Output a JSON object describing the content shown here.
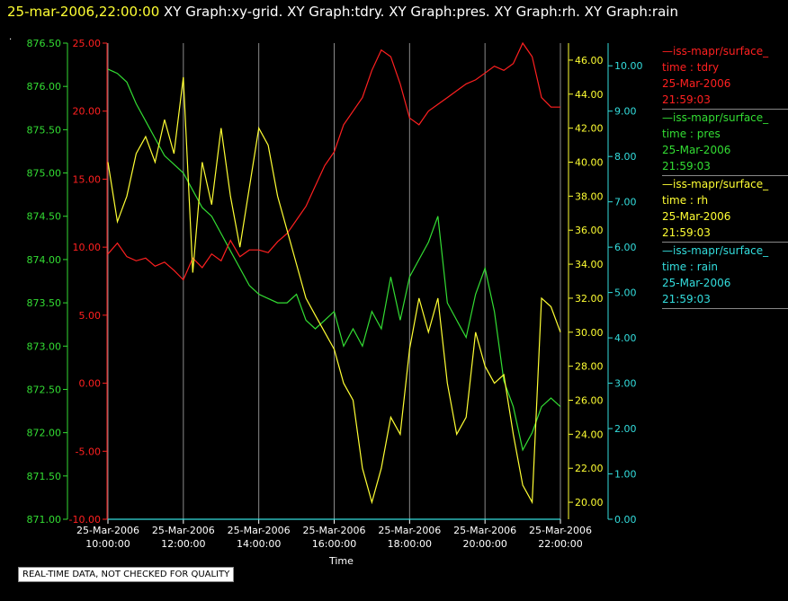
{
  "title": {
    "timestamp": "25-mar-2006,22:00:00",
    "graphs": "XY Graph:xy-grid.  XY Graph:tdry.  XY Graph:pres.  XY Graph:rh.  XY Graph:rain"
  },
  "dot": ".",
  "notice": "REAL-TIME DATA, NOT CHECKED FOR QUALITY",
  "legend": [
    {
      "name": "—iss-mapr/surface_",
      "field": "time : tdry",
      "date": "25-Mar-2006",
      "time": "21:59:03",
      "color": "#ff2020"
    },
    {
      "name": "—iss-mapr/surface_",
      "field": "time : pres",
      "date": "25-Mar-2006",
      "time": "21:59:03",
      "color": "#33dd33"
    },
    {
      "name": "—iss-mapr/surface_",
      "field": "time : rh",
      "date": "25-Mar-2006",
      "time": "21:59:03",
      "color": "#ffff33"
    },
    {
      "name": "—iss-mapr/surface_",
      "field": "time : rain",
      "date": "25-Mar-2006",
      "time": "21:59:03",
      "color": "#33dddd"
    }
  ],
  "chart_data": {
    "type": "line",
    "title": "",
    "xlabel": "Time",
    "grid": "vertical",
    "x_range": [
      "25-Mar-2006 10:00:00",
      "25-Mar-2006 22:00:00"
    ],
    "x_ticks": [
      {
        "date": "25-Mar-2006",
        "time": "10:00:00",
        "hour": 10
      },
      {
        "date": "25-Mar-2006",
        "time": "12:00:00",
        "hour": 12
      },
      {
        "date": "25-Mar-2006",
        "time": "14:00:00",
        "hour": 14
      },
      {
        "date": "25-Mar-2006",
        "time": "16:00:00",
        "hour": 16
      },
      {
        "date": "25-Mar-2006",
        "time": "18:00:00",
        "hour": 18
      },
      {
        "date": "25-Mar-2006",
        "time": "20:00:00",
        "hour": 20
      },
      {
        "date": "25-Mar-2006",
        "time": "22:00:00",
        "hour": 22
      }
    ],
    "axes": {
      "pres": {
        "color": "#33dd33",
        "range": [
          871.0,
          876.5
        ],
        "ticks": [
          "871.00",
          "871.50",
          "872.00",
          "872.50",
          "873.00",
          "873.50",
          "874.00",
          "874.50",
          "875.00",
          "875.50",
          "876.00",
          "876.50"
        ]
      },
      "tdry": {
        "color": "#ff2020",
        "range": [
          -10,
          25
        ],
        "ticks": [
          "-10.00",
          "-5.00",
          "0.00",
          "5.00",
          "10.00",
          "15.00",
          "20.00",
          "25.00"
        ]
      },
      "rh": {
        "color": "#ffff33",
        "range": [
          19,
          47
        ],
        "ticks": [
          "20.00",
          "22.00",
          "24.00",
          "26.00",
          "28.00",
          "30.00",
          "32.00",
          "34.00",
          "36.00",
          "38.00",
          "40.00",
          "42.00",
          "44.00",
          "46.00"
        ]
      },
      "rain": {
        "color": "#33dddd",
        "range": [
          0,
          10.5
        ],
        "ticks": [
          "0.00",
          "1.00",
          "2.00",
          "3.00",
          "4.00",
          "5.00",
          "6.00",
          "7.00",
          "8.00",
          "9.00",
          "10.00"
        ]
      }
    },
    "series": [
      {
        "name": "time : tdry",
        "axis": "tdry",
        "color": "#ff2020",
        "x": [
          10,
          10.25,
          10.5,
          10.75,
          11,
          11.25,
          11.5,
          11.75,
          12,
          12.25,
          12.5,
          12.75,
          13,
          13.25,
          13.5,
          13.75,
          14,
          14.25,
          14.5,
          14.75,
          15,
          15.25,
          15.5,
          15.75,
          16,
          16.25,
          16.5,
          16.75,
          17,
          17.25,
          17.5,
          17.75,
          18,
          18.25,
          18.5,
          18.75,
          19,
          19.25,
          19.5,
          19.75,
          20,
          20.25,
          20.5,
          20.75,
          21,
          21.25,
          21.5,
          21.75,
          22
        ],
        "values": [
          9.5,
          10.3,
          9.3,
          9.0,
          9.2,
          8.6,
          8.9,
          8.3,
          7.6,
          9.2,
          8.5,
          9.5,
          9.0,
          10.5,
          9.3,
          9.8,
          9.8,
          9.6,
          10.4,
          11.0,
          12.0,
          13.0,
          14.5,
          16.0,
          17.0,
          19.0,
          20.0,
          21.0,
          23.0,
          24.5,
          24.0,
          22.0,
          19.5,
          19.0,
          20.0,
          20.5,
          21.0,
          21.5,
          22.0,
          22.3,
          22.8,
          23.3,
          23.0,
          23.5,
          25.0,
          24.0,
          21.0,
          20.3,
          20.3
        ]
      },
      {
        "name": "time : pres",
        "axis": "pres",
        "color": "#33dd33",
        "x": [
          10,
          10.25,
          10.5,
          10.75,
          11,
          11.25,
          11.5,
          11.75,
          12,
          12.25,
          12.5,
          12.75,
          13,
          13.25,
          13.5,
          13.75,
          14,
          14.25,
          14.5,
          14.75,
          15,
          15.25,
          15.5,
          15.75,
          16,
          16.25,
          16.5,
          16.75,
          17,
          17.25,
          17.5,
          17.75,
          18,
          18.25,
          18.5,
          18.75,
          19,
          19.25,
          19.5,
          19.75,
          20,
          20.25,
          20.5,
          20.75,
          21,
          21.25,
          21.5,
          21.75,
          22
        ],
        "values": [
          876.2,
          876.15,
          876.05,
          875.8,
          875.6,
          875.4,
          875.2,
          875.1,
          875.0,
          874.8,
          874.6,
          874.5,
          874.3,
          874.1,
          873.9,
          873.7,
          873.6,
          873.55,
          873.5,
          873.5,
          873.6,
          873.3,
          873.2,
          873.3,
          873.4,
          873.0,
          873.2,
          873.0,
          873.4,
          873.2,
          873.8,
          873.3,
          873.8,
          874.0,
          874.2,
          874.5,
          873.5,
          873.3,
          873.1,
          873.6,
          873.9,
          873.4,
          872.6,
          872.3,
          871.8,
          872.0,
          872.3,
          872.4,
          872.3
        ]
      },
      {
        "name": "time : rh",
        "axis": "rh",
        "color": "#ffff33",
        "x": [
          10,
          10.25,
          10.5,
          10.75,
          11,
          11.25,
          11.5,
          11.75,
          12,
          12.25,
          12.5,
          12.75,
          13,
          13.25,
          13.5,
          13.75,
          14,
          14.25,
          14.5,
          14.75,
          15,
          15.25,
          15.5,
          15.75,
          16,
          16.25,
          16.5,
          16.75,
          17,
          17.25,
          17.5,
          17.75,
          18,
          18.25,
          18.5,
          18.75,
          19,
          19.25,
          19.5,
          19.75,
          20,
          20.25,
          20.5,
          20.75,
          21,
          21.25,
          21.5,
          21.75,
          22
        ],
        "values": [
          40.0,
          36.5,
          38.0,
          40.5,
          41.5,
          40.0,
          42.5,
          40.5,
          45.0,
          33.5,
          40.0,
          37.5,
          42.0,
          38.0,
          35.0,
          38.5,
          42.0,
          41.0,
          38.0,
          36.0,
          34.0,
          32.0,
          31.0,
          30.0,
          29.0,
          27.0,
          26.0,
          22.0,
          20.0,
          22.0,
          25.0,
          24.0,
          29.0,
          32.0,
          30.0,
          32.0,
          27.0,
          24.0,
          25.0,
          30.0,
          28.0,
          27.0,
          27.5,
          24.0,
          21.0,
          20.0,
          32.0,
          31.5,
          30.0
        ]
      },
      {
        "name": "time : rain",
        "axis": "rain",
        "color": "#33dddd",
        "x": [
          10,
          22
        ],
        "values": [
          0.0,
          0.0
        ]
      }
    ]
  }
}
